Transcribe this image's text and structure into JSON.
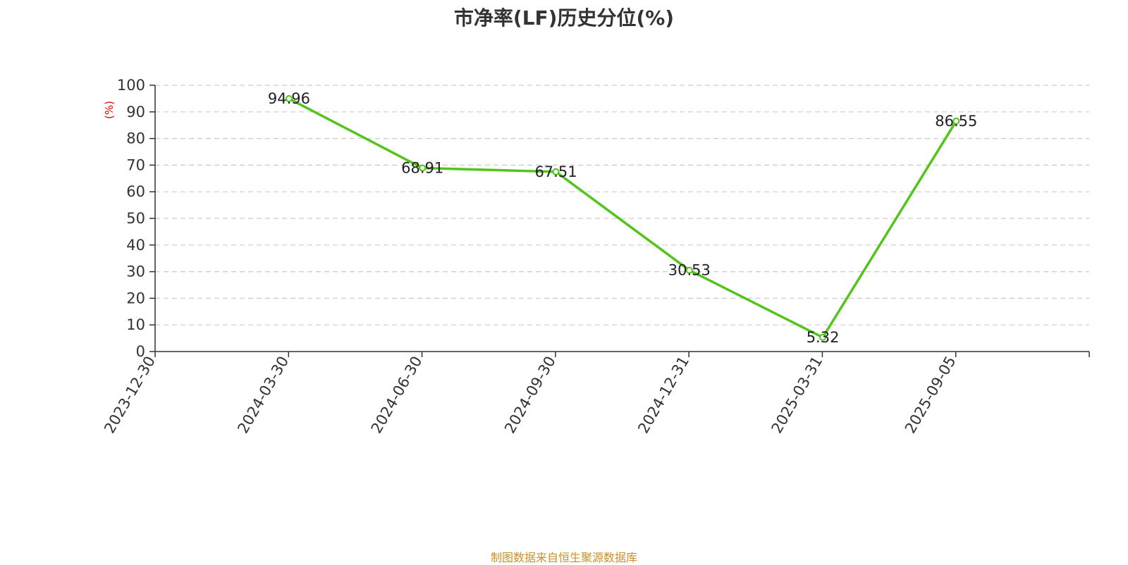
{
  "page": {
    "title": "市净率(LF)历史分位(%)",
    "footer": "制图数据来自恒生聚源数据库"
  },
  "chart_data": {
    "type": "line",
    "title": "市净率(LF)历史分位(%)",
    "ylabel": "(%)",
    "xlabel": "",
    "categories": [
      "2023-12-30",
      "2024-03-30",
      "2024-06-30",
      "2024-09-30",
      "2024-12-31",
      "2025-03-31",
      "2025-09-05"
    ],
    "series": [
      {
        "values": [
          null,
          94.96,
          68.91,
          67.51,
          30.53,
          5.32,
          86.55
        ],
        "labels": [
          "",
          "94.96",
          "68.91",
          "67.51",
          "30.53",
          "5.32",
          "86.55"
        ]
      }
    ],
    "ylim": [
      0,
      100
    ],
    "yticks": [
      0,
      10,
      20,
      30,
      40,
      50,
      60,
      70,
      80,
      90,
      100
    ],
    "ytick_labels": [
      "0",
      "10",
      "20",
      "30",
      "40",
      "50",
      "60",
      "70",
      "80",
      "90",
      "100"
    ],
    "grid": true,
    "colors": {
      "line": "#52c41a",
      "grid": "#cccccc",
      "axis": "#333333",
      "ylabel": "#e60000",
      "footer": "#c8912a"
    }
  }
}
